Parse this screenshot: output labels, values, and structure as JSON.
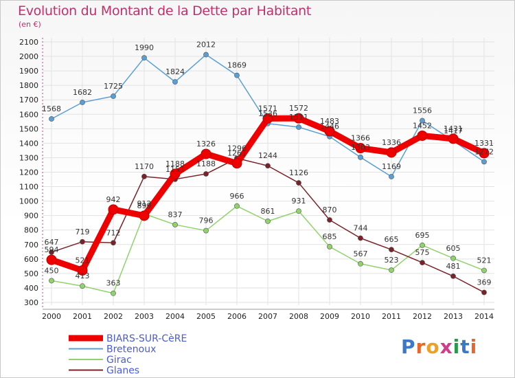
{
  "title": "Evolution du Montant de la Dette par Habitant",
  "subtitle": "(en €)",
  "logo": "Proxiti",
  "chart_data": {
    "type": "line",
    "x": [
      2000,
      2001,
      2002,
      2003,
      2004,
      2005,
      2006,
      2007,
      2008,
      2009,
      2010,
      2011,
      2012,
      2013,
      2014
    ],
    "ylim": [
      300,
      2100
    ],
    "yticks": [
      300,
      400,
      500,
      600,
      700,
      800,
      900,
      1000,
      1100,
      1200,
      1300,
      1400,
      1500,
      1600,
      1700,
      1800,
      1900,
      2000,
      2100
    ],
    "grid": true,
    "legend_position": "bottom-left",
    "series": [
      {
        "name": "Bretenoux",
        "color": "#5a9fd4",
        "values": [
          1568,
          1682,
          1725,
          1990,
          1824,
          2012,
          1869,
          1536,
          1511,
          1446,
          1303,
          1169,
          1556,
          1417,
          1272
        ]
      },
      {
        "name": "Girac",
        "color": "#8fd36a",
        "values": [
          450,
          413,
          363,
          912,
          837,
          796,
          966,
          861,
          931,
          685,
          567,
          523,
          695,
          605,
          521
        ]
      },
      {
        "name": "Glanes",
        "color": "#7b2228",
        "values": [
          647,
          719,
          712,
          1170,
          1151,
          1188,
          1296,
          1244,
          1126,
          870,
          744,
          665,
          575,
          481,
          369
        ]
      },
      {
        "name": "BIARS-SUR-CèRE",
        "color": "#ee0000",
        "values": [
          594,
          521,
          942,
          899,
          1188,
          1326,
          1261,
          1571,
          1572,
          1483,
          1366,
          1336,
          1452,
          1431,
          1331
        ]
      }
    ]
  }
}
